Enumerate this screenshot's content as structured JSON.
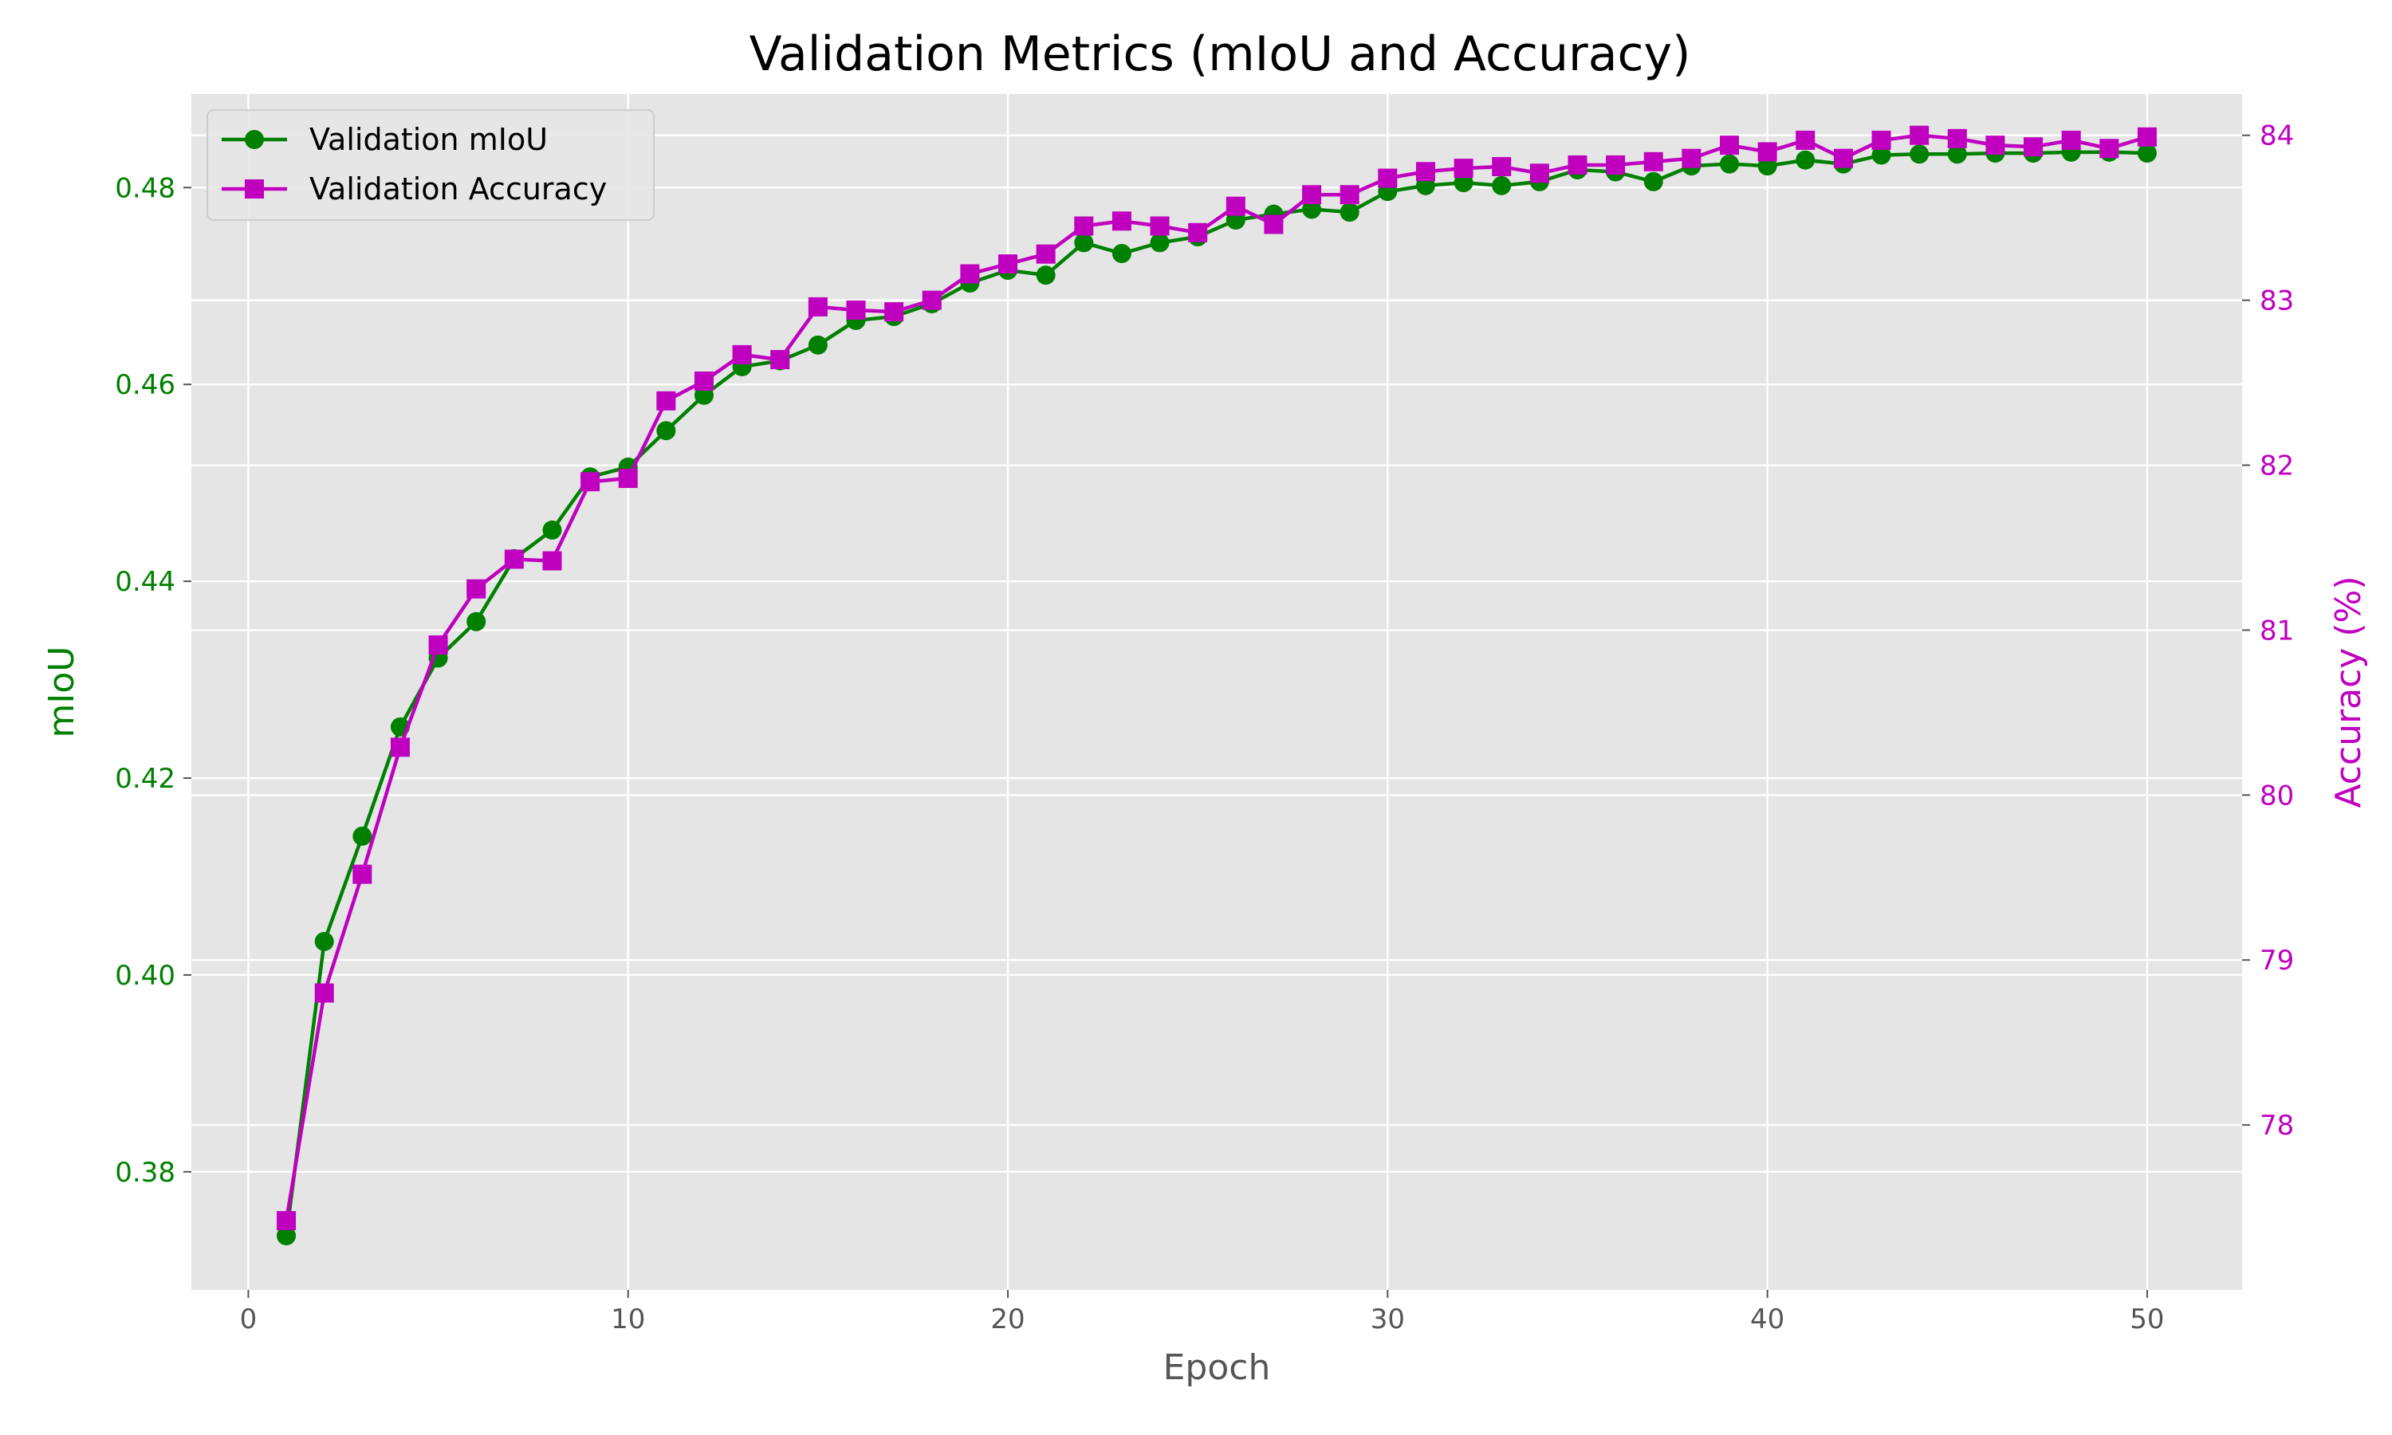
{
  "chart_data": {
    "type": "line",
    "title": "Validation Metrics (mIoU and Accuracy)",
    "xlabel": "Epoch",
    "ylabel_left": "mIoU",
    "ylabel_right": "Accuracy (%)",
    "xlim": [
      -1.5,
      52.5
    ],
    "ylim_left": [
      0.368,
      0.4895
    ],
    "ylim_right": [
      77.0,
      84.25
    ],
    "xticks": [
      "0",
      "10",
      "20",
      "30",
      "40",
      "50"
    ],
    "yticks_left": [
      "0.38",
      "0.40",
      "0.42",
      "0.44",
      "0.46",
      "0.48"
    ],
    "yticks_right": [
      "78",
      "79",
      "80",
      "81",
      "82",
      "83",
      "84"
    ],
    "grid": true,
    "legend_position": "upper-left",
    "x": [
      1,
      2,
      3,
      4,
      5,
      6,
      7,
      8,
      9,
      10,
      11,
      12,
      13,
      14,
      15,
      16,
      17,
      18,
      19,
      20,
      21,
      22,
      23,
      24,
      25,
      26,
      27,
      28,
      29,
      30,
      31,
      32,
      33,
      34,
      35,
      36,
      37,
      38,
      39,
      40,
      41,
      42,
      43,
      44,
      45,
      46,
      47,
      48,
      49,
      50
    ],
    "series": [
      {
        "name": "Validation mIoU",
        "axis": "left",
        "color": "#008000",
        "marker": "circle",
        "values": [
          0.3735,
          0.4034,
          0.4141,
          0.4252,
          0.4322,
          0.4359,
          0.4423,
          0.4452,
          0.4506,
          0.4516,
          0.4553,
          0.4589,
          0.4618,
          0.4624,
          0.464,
          0.4665,
          0.4669,
          0.4682,
          0.4703,
          0.4716,
          0.4711,
          0.4744,
          0.4733,
          0.4744,
          0.475,
          0.4767,
          0.4773,
          0.4778,
          0.4775,
          0.4796,
          0.4802,
          0.4805,
          0.4802,
          0.4806,
          0.4818,
          0.4816,
          0.4806,
          0.4822,
          0.4824,
          0.4822,
          0.4828,
          0.4824,
          0.4833,
          0.4834,
          0.4834,
          0.4835,
          0.4835,
          0.4836,
          0.4836,
          0.4835
        ]
      },
      {
        "name": "Validation Accuracy",
        "axis": "right",
        "color": "#bf00bf",
        "marker": "square",
        "values": [
          77.42,
          78.8,
          79.52,
          80.29,
          80.91,
          81.25,
          81.43,
          81.42,
          81.9,
          81.92,
          82.39,
          82.51,
          82.67,
          82.64,
          82.96,
          82.94,
          82.93,
          83.0,
          83.16,
          83.22,
          83.28,
          83.45,
          83.48,
          83.45,
          83.41,
          83.57,
          83.46,
          83.64,
          83.64,
          83.74,
          83.78,
          83.8,
          83.81,
          83.77,
          83.82,
          83.82,
          83.84,
          83.86,
          83.94,
          83.9,
          83.97,
          83.86,
          83.97,
          84.0,
          83.98,
          83.94,
          83.93,
          83.97,
          83.92,
          83.99
        ]
      }
    ]
  }
}
